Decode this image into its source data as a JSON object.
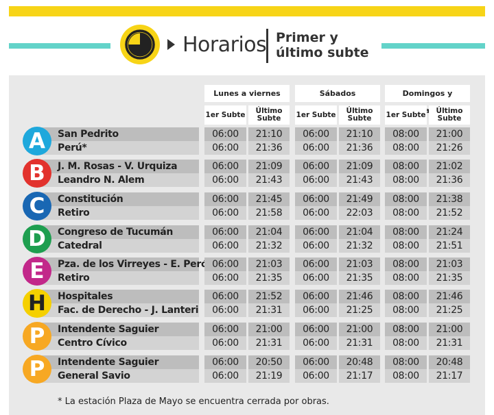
{
  "header": {
    "title": "Horarios",
    "subtitle_line1": "Primer y",
    "subtitle_line2": "último subte",
    "accent_yellow": "#f7d417",
    "accent_teal": "#63d3c9",
    "icon": "clock-icon"
  },
  "columns": {
    "weekdays": "Lunes a viernes",
    "saturdays": "Sábados",
    "sundays": "Domingos y feriados",
    "first": "1er Subte",
    "last_line1": "Último",
    "last_line2": "Subte"
  },
  "lines": [
    {
      "letter": "A",
      "color": "#1ea8dc",
      "stations": [
        "San Pedrito",
        "Perú*"
      ],
      "times": [
        [
          "06:00",
          "21:10",
          "06:00",
          "21:10",
          "08:00",
          "21:00"
        ],
        [
          "06:00",
          "21:36",
          "06:00",
          "21:36",
          "08:00",
          "21:26"
        ]
      ]
    },
    {
      "letter": "B",
      "color": "#e2322d",
      "stations": [
        "J. M. Rosas - V. Urquiza",
        "Leandro N. Alem"
      ],
      "times": [
        [
          "06:00",
          "21:09",
          "06:00",
          "21:09",
          "08:00",
          "21:02"
        ],
        [
          "06:00",
          "21:43",
          "06:00",
          "21:43",
          "08:00",
          "21:36"
        ]
      ]
    },
    {
      "letter": "C",
      "color": "#1967b3",
      "stations": [
        "Constitución",
        "Retiro"
      ],
      "times": [
        [
          "06:00",
          "21:45",
          "06:00",
          "21:49",
          "08:00",
          "21:38"
        ],
        [
          "06:00",
          "21:58",
          "06:00",
          "22:03",
          "08:00",
          "21:52"
        ]
      ]
    },
    {
      "letter": "D",
      "color": "#1e9e4f",
      "stations": [
        "Congreso de Tucumán",
        "Catedral"
      ],
      "times": [
        [
          "06:00",
          "21:04",
          "06:00",
          "21:04",
          "08:00",
          "21:24"
        ],
        [
          "06:00",
          "21:32",
          "06:00",
          "21:32",
          "08:00",
          "21:51"
        ]
      ]
    },
    {
      "letter": "E",
      "color": "#c2288a",
      "stations": [
        "Pza. de los Virreyes - E. Perón",
        "Retiro"
      ],
      "times": [
        [
          "06:00",
          "21:03",
          "06:00",
          "21:03",
          "08:00",
          "21:03"
        ],
        [
          "06:00",
          "21:35",
          "06:00",
          "21:35",
          "08:00",
          "21:35"
        ]
      ]
    },
    {
      "letter": "H",
      "color": "#f5d000",
      "stations": [
        "Hospitales",
        "Fac. de Derecho - J. Lanteri"
      ],
      "times": [
        [
          "06:00",
          "21:52",
          "06:00",
          "21:46",
          "08:00",
          "21:46"
        ],
        [
          "06:00",
          "21:31",
          "06:00",
          "21:25",
          "08:00",
          "21:25"
        ]
      ]
    },
    {
      "letter": "P",
      "color": "#f7a823",
      "stations": [
        "Intendente Saguier",
        "Centro Cívico"
      ],
      "times": [
        [
          "06:00",
          "21:00",
          "06:00",
          "21:00",
          "08:00",
          "21:00"
        ],
        [
          "06:00",
          "21:31",
          "06:00",
          "21:31",
          "08:00",
          "21:31"
        ]
      ]
    },
    {
      "letter": "P",
      "color": "#f7a823",
      "stations": [
        "Intendente Saguier",
        "General Savio"
      ],
      "times": [
        [
          "06:00",
          "20:50",
          "06:00",
          "20:48",
          "08:00",
          "20:48"
        ],
        [
          "06:00",
          "21:19",
          "06:00",
          "21:17",
          "08:00",
          "21:17"
        ]
      ]
    }
  ],
  "footnote": "* La estación Plaza de Mayo se encuentra cerrada por obras."
}
